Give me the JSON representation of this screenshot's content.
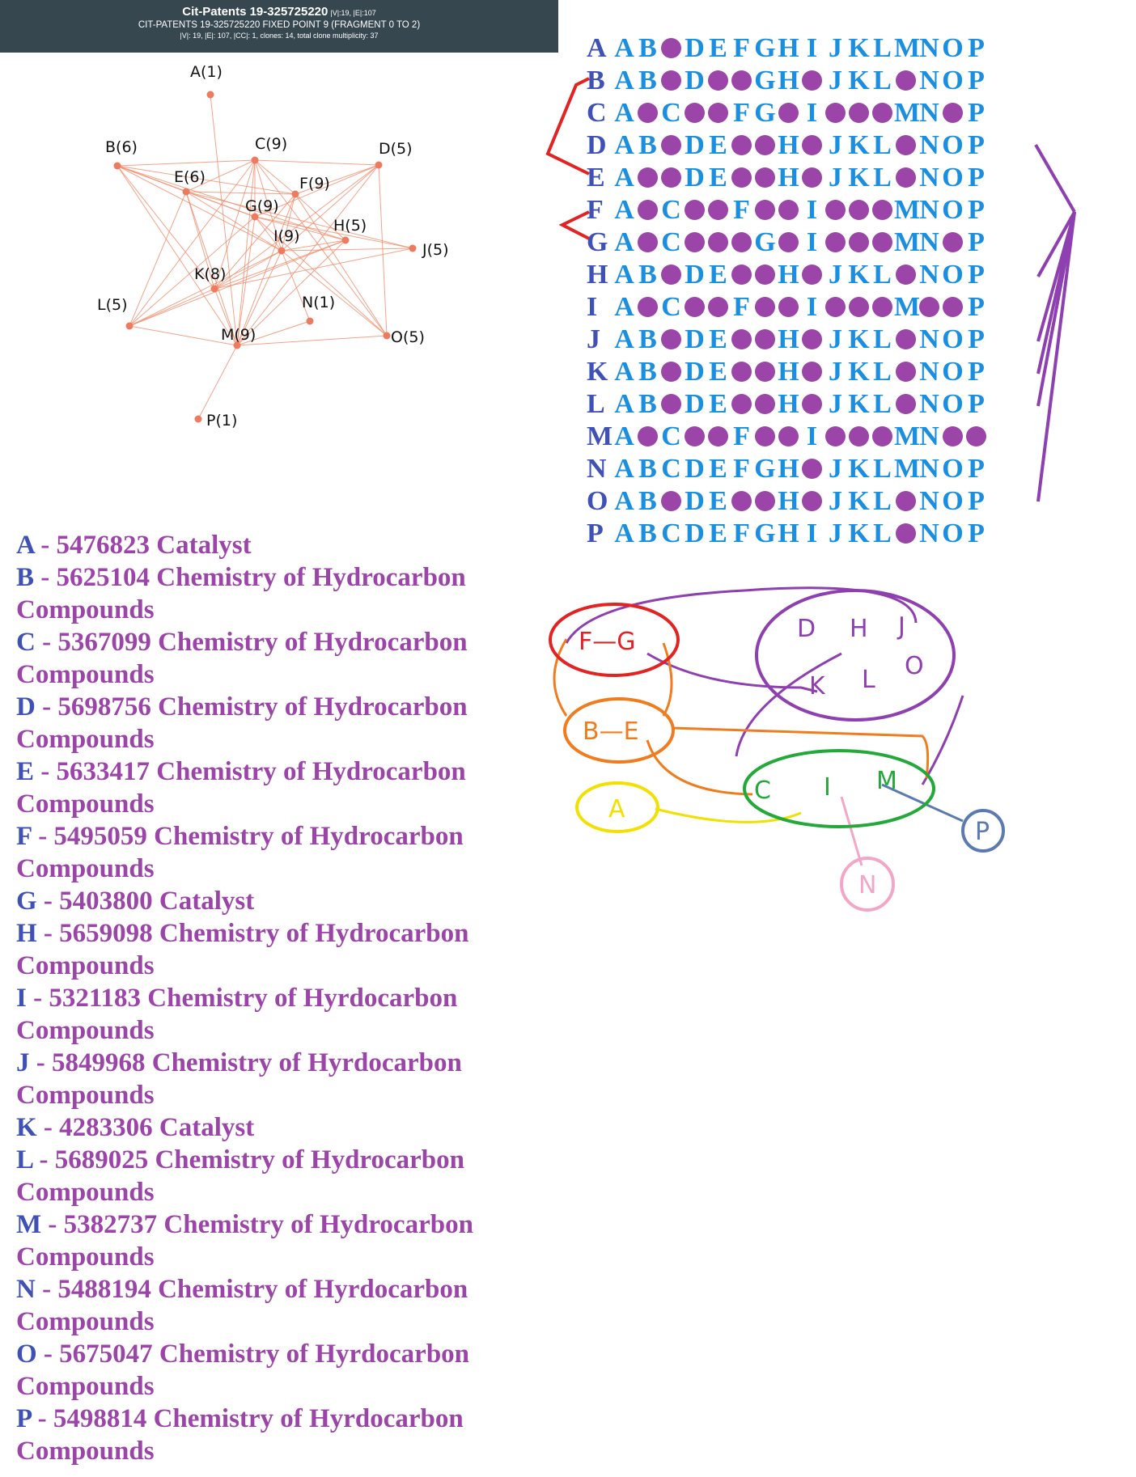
{
  "header": {
    "title": "Cit-Patents 19-325725220",
    "title_stats": "|V|:19, |E|:107",
    "subtitle": "CIT-PATENTS 19-325725220 FIXED POINT 9 (FRAGMENT 0 TO 2)",
    "stats": "|V|: 19, |E|: 107, |CC|: 1, clones: 14, total clone multiplicity: 37",
    "background": "#37474f"
  },
  "graph": {
    "edge_color": "#f28c6b",
    "node_color": "#ef7b5e",
    "node_labels": {
      "A": "A(1)",
      "B": "B(6)",
      "C": "C(9)",
      "D": "D(5)",
      "E": "E(6)",
      "F": "F(9)",
      "G": "G(9)",
      "H": "H(5)",
      "I": "I(9)",
      "J": "J(5)",
      "K": "K(8)",
      "L": "L(5)",
      "M": "M(9)",
      "N": "N(1)",
      "O": "O(5)",
      "P": "P(1)"
    }
  },
  "matrix": {
    "columns": [
      "A",
      "B",
      "C",
      "D",
      "E",
      "F",
      "G",
      "H",
      "I",
      "J",
      "K",
      "L",
      "M",
      "N",
      "O",
      "P"
    ],
    "rows": [
      {
        "label": "A",
        "marks": [
          0,
          0,
          1,
          0,
          0,
          0,
          0,
          0,
          0,
          0,
          0,
          0,
          0,
          0,
          0,
          0
        ]
      },
      {
        "label": "B",
        "marks": [
          0,
          0,
          1,
          0,
          1,
          1,
          0,
          0,
          1,
          0,
          0,
          0,
          1,
          0,
          0,
          0
        ]
      },
      {
        "label": "C",
        "marks": [
          0,
          1,
          0,
          1,
          1,
          0,
          0,
          1,
          0,
          1,
          1,
          1,
          0,
          0,
          1,
          0
        ]
      },
      {
        "label": "D",
        "marks": [
          0,
          0,
          1,
          0,
          0,
          1,
          1,
          0,
          1,
          0,
          0,
          0,
          1,
          0,
          0,
          0
        ]
      },
      {
        "label": "E",
        "marks": [
          0,
          1,
          1,
          0,
          0,
          1,
          1,
          0,
          1,
          0,
          0,
          0,
          1,
          0,
          0,
          0
        ]
      },
      {
        "label": "F",
        "marks": [
          0,
          1,
          0,
          1,
          1,
          0,
          1,
          1,
          0,
          1,
          1,
          1,
          0,
          0,
          0,
          0
        ]
      },
      {
        "label": "G",
        "marks": [
          0,
          1,
          0,
          1,
          1,
          1,
          0,
          1,
          0,
          1,
          1,
          1,
          0,
          0,
          1,
          0
        ]
      },
      {
        "label": "H",
        "marks": [
          0,
          0,
          1,
          0,
          0,
          1,
          1,
          0,
          1,
          0,
          0,
          0,
          1,
          0,
          0,
          0
        ]
      },
      {
        "label": "I",
        "marks": [
          0,
          1,
          0,
          1,
          1,
          0,
          1,
          1,
          0,
          1,
          1,
          1,
          0,
          1,
          1,
          0
        ]
      },
      {
        "label": "J",
        "marks": [
          0,
          0,
          1,
          0,
          0,
          1,
          1,
          0,
          1,
          0,
          0,
          0,
          1,
          0,
          0,
          0
        ]
      },
      {
        "label": "K",
        "marks": [
          0,
          0,
          1,
          0,
          0,
          1,
          1,
          0,
          1,
          0,
          0,
          0,
          1,
          0,
          0,
          0
        ]
      },
      {
        "label": "L",
        "marks": [
          0,
          0,
          1,
          0,
          0,
          1,
          1,
          0,
          1,
          0,
          0,
          0,
          1,
          0,
          0,
          0
        ]
      },
      {
        "label": "M",
        "marks": [
          0,
          1,
          0,
          1,
          1,
          0,
          1,
          1,
          0,
          1,
          1,
          1,
          0,
          0,
          1,
          1
        ]
      },
      {
        "label": "N",
        "marks": [
          0,
          0,
          0,
          0,
          0,
          0,
          0,
          0,
          1,
          0,
          0,
          0,
          0,
          0,
          0,
          0
        ]
      },
      {
        "label": "O",
        "marks": [
          0,
          0,
          1,
          0,
          0,
          1,
          1,
          0,
          1,
          0,
          0,
          0,
          1,
          0,
          0,
          0
        ]
      },
      {
        "label": "P",
        "marks": [
          0,
          0,
          0,
          0,
          0,
          0,
          0,
          0,
          0,
          0,
          0,
          0,
          1,
          0,
          0,
          0
        ]
      }
    ],
    "header_color": "#3f51b5",
    "cell_color": "#1a8fe0",
    "mark_color": "#9c45a8"
  },
  "annotations": {
    "red_color": "#e32222",
    "purple_color": "#8e3fb0"
  },
  "legend": [
    {
      "key": "A",
      "text": " - 5476823 Catalyst"
    },
    {
      "key": "B",
      "text": " - 5625104 Chemistry of Hydrocarbon Compounds"
    },
    {
      "key": "C",
      "text": " - 5367099 Chemistry of Hydrocarbon Compounds"
    },
    {
      "key": "D",
      "text": " - 5698756 Chemistry of Hydrocarbon Compounds"
    },
    {
      "key": "E",
      "text": " - 5633417 Chemistry of Hydrocarbon Compounds"
    },
    {
      "key": "F",
      "text": " - 5495059 Chemistry of Hydrocarbon Compounds"
    },
    {
      "key": "G",
      "text": " - 5403800 Catalyst"
    },
    {
      "key": "H",
      "text": " - 5659098 Chemistry of Hydrocarbon Compounds"
    },
    {
      "key": "I",
      "text": " - 5321183 Chemistry of Hyrdocarbon Compounds"
    },
    {
      "key": "J",
      "text": " - 5849968 Chemistry of Hyrdocarbon Compounds"
    },
    {
      "key": "K",
      "text": " - 4283306 Catalyst"
    },
    {
      "key": "L",
      "text": " - 5689025 Chemistry of Hydrocarbon Compounds"
    },
    {
      "key": "M",
      "text": " - 5382737 Chemistry of Hydrocarbon Compounds"
    },
    {
      "key": "N",
      "text": " - 5488194 Chemistry of Hyrdocarbon Compounds"
    },
    {
      "key": "O",
      "text": " - 5675047 Chemistry of Hyrdocarbon Compounds"
    },
    {
      "key": "P",
      "text": " - 5498814 Chemistry of Hyrdocarbon Compounds"
    }
  ],
  "clusters": {
    "fg": {
      "label": "F—G",
      "color": "#e32222"
    },
    "dhjklo": {
      "letters": [
        "D",
        "H",
        "J",
        "K",
        "L",
        "O"
      ],
      "color": "#8e3fb0"
    },
    "be": {
      "label": "B—E",
      "color": "#f07c1e"
    },
    "a": {
      "label": "A",
      "color": "#f2e000"
    },
    "cim": {
      "letters": [
        "C",
        "I",
        "M"
      ],
      "color": "#23a83a"
    },
    "n": {
      "label": "N",
      "color": "#f4a6c8"
    },
    "p": {
      "label": "P",
      "color": "#5b7bb0"
    }
  }
}
